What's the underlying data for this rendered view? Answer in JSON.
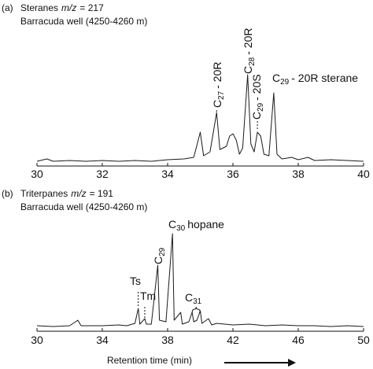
{
  "chart_data": [
    {
      "type": "line",
      "panel_label": "(a)",
      "title": "Steranes",
      "title_italic": "m/z",
      "title_rest": "= 217",
      "subtitle": "Barracuda well (4250-4260 m)",
      "color": "#1a1a1a",
      "x": [
        30.0,
        30.3,
        30.5,
        31.0,
        31.5,
        32.0,
        32.5,
        33.0,
        33.5,
        34.0,
        34.5,
        34.8,
        35.0,
        35.1,
        35.3,
        35.5,
        35.6,
        35.8,
        35.9,
        36.0,
        36.1,
        36.2,
        36.3,
        36.45,
        36.55,
        36.65,
        36.75,
        36.85,
        36.95,
        37.1,
        37.25,
        37.35,
        37.5,
        37.8,
        38.0,
        38.3,
        38.5,
        39.0,
        39.5,
        40.0
      ],
      "values": [
        3,
        6,
        3,
        4,
        3,
        4,
        3,
        4,
        3,
        5,
        6,
        8,
        40,
        10,
        15,
        65,
        18,
        22,
        35,
        38,
        30,
        12,
        20,
        113,
        25,
        15,
        40,
        35,
        12,
        10,
        90,
        12,
        6,
        8,
        5,
        8,
        4,
        5,
        4,
        3
      ],
      "xlim": [
        30,
        40
      ],
      "xticks": [
        30,
        32,
        34,
        36,
        38,
        40
      ],
      "annotations": [
        {
          "text": "C",
          "sub": "27",
          "suffix": "- 20R",
          "x": 35.5
        },
        {
          "text": "C",
          "sub": "28",
          "suffix": "- 20R",
          "x": 36.45
        },
        {
          "text": "C",
          "sub": "29",
          "suffix": "- 20S",
          "x": 36.75
        },
        {
          "text": "C",
          "sub": "29",
          "suffix": "- 20R sterane",
          "x": 37.25
        }
      ]
    },
    {
      "type": "line",
      "panel_label": "(b)",
      "title": "Triterpanes",
      "title_italic": "m/z",
      "title_rest": "= 191",
      "subtitle": "Barracuda well (4250-4260 m)",
      "color": "#1a1a1a",
      "x": [
        30.0,
        31.0,
        32.0,
        32.5,
        32.7,
        34.0,
        35.0,
        35.5,
        36.0,
        36.2,
        36.3,
        36.6,
        36.7,
        37.0,
        37.4,
        37.5,
        37.9,
        38.3,
        38.4,
        38.8,
        38.9,
        39.3,
        39.5,
        39.6,
        39.8,
        40.0,
        40.1,
        40.5,
        40.7,
        41.0,
        41.5,
        42.0,
        43.0,
        44.0,
        45.0,
        46.0,
        47.0,
        48.0,
        49.0,
        50.0
      ],
      "values": [
        3,
        2,
        3,
        10,
        3,
        3,
        4,
        3,
        6,
        25,
        5,
        12,
        5,
        5,
        80,
        10,
        8,
        120,
        10,
        20,
        5,
        8,
        20,
        8,
        10,
        22,
        6,
        12,
        4,
        6,
        5,
        4,
        5,
        3,
        4,
        3,
        3,
        2,
        3,
        2
      ],
      "xlim": [
        30,
        50
      ],
      "xticks": [
        30,
        34,
        38,
        42,
        46,
        50
      ],
      "xlabel": "Retention time (min)",
      "annotations": [
        {
          "text": "Ts",
          "x": 36.2
        },
        {
          "text": "Tm",
          "x": 36.6
        },
        {
          "text": "C",
          "sub": "29",
          "x": 37.4
        },
        {
          "text": "C",
          "sub": "30",
          "suffix": "hopane",
          "x": 38.3
        },
        {
          "text": "C",
          "sub": "31",
          "x": [
            39.5,
            40.0
          ]
        }
      ]
    }
  ]
}
